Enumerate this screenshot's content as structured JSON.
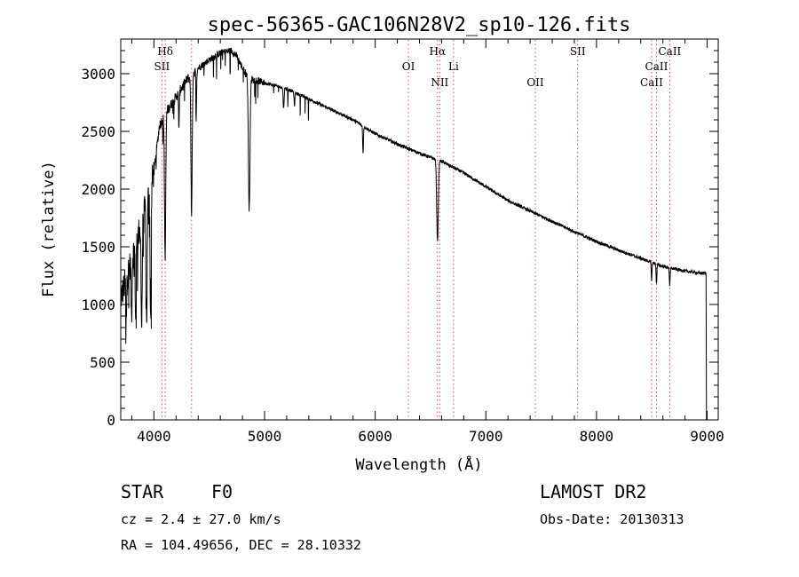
{
  "chart_data": {
    "type": "line",
    "title": "spec-56365-GAC106N28V2_sp10-126.fits",
    "xlabel": "Wavelength (Å)",
    "ylabel": "Flux (relative)",
    "xlim": [
      3700,
      9100
    ],
    "ylim": [
      0,
      3300
    ],
    "xticks": [
      4000,
      5000,
      6000,
      7000,
      8000,
      9000
    ],
    "yticks": [
      0,
      500,
      1000,
      1500,
      2000,
      2500,
      3000
    ],
    "grid": false,
    "continuum": [
      [
        3700,
        1050
      ],
      [
        3800,
        1400
      ],
      [
        3900,
        1750
      ],
      [
        4000,
        2150
      ],
      [
        4050,
        2550
      ],
      [
        4100,
        2650
      ],
      [
        4200,
        2800
      ],
      [
        4300,
        2950
      ],
      [
        4400,
        3050
      ],
      [
        4500,
        3120
      ],
      [
        4600,
        3180
      ],
      [
        4700,
        3200
      ],
      [
        4750,
        3150
      ],
      [
        4800,
        3050
      ],
      [
        4850,
        2980
      ],
      [
        4900,
        2950
      ],
      [
        5000,
        2920
      ],
      [
        5200,
        2870
      ],
      [
        5400,
        2780
      ],
      [
        5600,
        2690
      ],
      [
        5800,
        2600
      ],
      [
        6000,
        2480
      ],
      [
        6200,
        2390
      ],
      [
        6400,
        2310
      ],
      [
        6600,
        2240
      ],
      [
        6800,
        2140
      ],
      [
        7000,
        2020
      ],
      [
        7200,
        1900
      ],
      [
        7400,
        1810
      ],
      [
        7600,
        1720
      ],
      [
        7800,
        1630
      ],
      [
        8000,
        1545
      ],
      [
        8200,
        1470
      ],
      [
        8400,
        1400
      ],
      [
        8600,
        1330
      ],
      [
        8800,
        1290
      ],
      [
        8950,
        1270
      ]
    ],
    "absorption_lines": [
      {
        "w": 3750,
        "depth": 300,
        "width": 6
      },
      {
        "w": 3798,
        "depth": 500,
        "width": 6
      },
      {
        "w": 3835,
        "depth": 650,
        "width": 6
      },
      {
        "w": 3889,
        "depth": 900,
        "width": 7
      },
      {
        "w": 3934,
        "depth": 1050,
        "width": 7
      },
      {
        "w": 3970,
        "depth": 1150,
        "width": 7
      },
      {
        "w": 4101,
        "depth": 1250,
        "width": 8
      },
      {
        "w": 4226,
        "depth": 300,
        "width": 5
      },
      {
        "w": 4340,
        "depth": 1200,
        "width": 8
      },
      {
        "w": 4383,
        "depth": 350,
        "width": 5
      },
      {
        "w": 4861,
        "depth": 1150,
        "width": 10
      },
      {
        "w": 5172,
        "depth": 180,
        "width": 6
      },
      {
        "w": 5270,
        "depth": 120,
        "width": 5
      },
      {
        "w": 5890,
        "depth": 230,
        "width": 5
      },
      {
        "w": 6563,
        "depth": 700,
        "width": 10
      },
      {
        "w": 8498,
        "depth": 150,
        "width": 5
      },
      {
        "w": 8542,
        "depth": 170,
        "width": 5
      },
      {
        "w": 8662,
        "depth": 160,
        "width": 5
      }
    ],
    "series": [
      {
        "values_source": "continuum + absorption_lines",
        "red_cutoff": 8990,
        "end_flux": 0
      }
    ],
    "annotations": [
      {
        "label": "Hδ",
        "w": 4102,
        "level": 0
      },
      {
        "label": "SII",
        "w": 4072,
        "level": 1
      },
      {
        "label": "OI",
        "w": 6300,
        "level": 1
      },
      {
        "label": "Hα",
        "w": 6563,
        "level": 0
      },
      {
        "label": "Li",
        "w": 6708,
        "level": 1
      },
      {
        "label": "NII",
        "w": 6583,
        "level": 2
      },
      {
        "label": "OII",
        "w": 7447,
        "level": 2
      },
      {
        "label": "SII",
        "w": 7830,
        "level": 0
      },
      {
        "label": "CaII",
        "w": 8662,
        "level": 0
      },
      {
        "label": "CaII",
        "w": 8542,
        "level": 1
      },
      {
        "label": "CaII",
        "w": 8498,
        "level": 2
      }
    ],
    "marker_lines": [
      4072,
      4102,
      4340,
      6300,
      6563,
      6583,
      6708,
      7447,
      7830,
      8498,
      8542,
      8662
    ]
  },
  "info": {
    "object_class": "STAR",
    "subclass": "F0",
    "cz": "cz = 2.4 ± 27.0 km/s",
    "coords": "RA = 104.49656, DEC =  28.10332",
    "survey": "LAMOST DR2",
    "obs_date": "Obs-Date: 20130313"
  }
}
